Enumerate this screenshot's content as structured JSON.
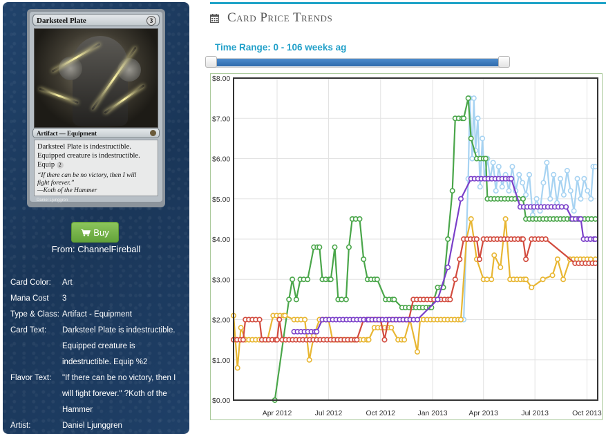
{
  "card": {
    "name": "Darksteel Plate",
    "cost": "3",
    "type_line": "Artifact — Equipment",
    "rules_text_lines": [
      "Darksteel Plate is indestructible.",
      "Equipped creature is indestructible.",
      "Equip"
    ],
    "equip_cost": "2",
    "flavor_lines": [
      "“If there can be no victory, then I will",
      "fight forever.”",
      "—Koth of the Hammer"
    ],
    "artist_credit": "Daniel Ljunggren"
  },
  "buy": {
    "label": "Buy",
    "from": "From: ChannelFireball",
    "icon": "shopping-cart-icon",
    "color": "#6aab40"
  },
  "details": [
    {
      "label": "Card Color:",
      "value": "Art"
    },
    {
      "label": "Mana Cost",
      "value": "3"
    },
    {
      "label": "Type & Class:",
      "value": "Artifact - Equipment"
    },
    {
      "label": "Card Text:",
      "value": "Darksteel Plate is indestructible. Equipped creature is indestructible. Equip %2"
    },
    {
      "label": "Flavor Text:",
      "value": "\"If there can be no victory, then I will fight forever.\" ?Koth of the Hammer"
    },
    {
      "label": "Artist:",
      "value": "Daniel Ljunggren"
    }
  ],
  "header": {
    "title": "Card Price Trends",
    "icon": "calendar-icon",
    "accent": "#1fa3c8"
  },
  "range": {
    "label": "Time Range: 0 - 106 weeks ag",
    "min": 0,
    "max": 106,
    "low": 0,
    "high": 106
  },
  "chart_data": {
    "type": "line",
    "x_ticks": [
      "Apr 2012",
      "Jul 2012",
      "Oct 2012",
      "Jan 2013",
      "Apr 2013",
      "Jul 2013",
      "Oct 2013"
    ],
    "x_tick_dates": [
      "2012-04-01",
      "2012-07-01",
      "2012-10-01",
      "2013-01-01",
      "2013-04-01",
      "2013-07-01",
      "2013-10-01"
    ],
    "xlim": [
      "2012-01-15",
      "2013-10-20"
    ],
    "y_ticks": [
      "$0.00",
      "$1.00",
      "$2.00",
      "$3.00",
      "$4.00",
      "$5.00",
      "$6.00",
      "$7.00",
      "$8.00"
    ],
    "ylim": [
      0,
      8
    ],
    "grid": true,
    "series": [
      {
        "color": "#a7d3f2",
        "points": [
          [
            "2013-02-25",
            2.0
          ],
          [
            "2013-03-05",
            5.5
          ],
          [
            "2013-03-08",
            7.5
          ],
          [
            "2013-03-12",
            6.0
          ],
          [
            "2013-03-15",
            7.5
          ],
          [
            "2013-03-18",
            6.2
          ],
          [
            "2013-03-22",
            7.0
          ],
          [
            "2013-03-26",
            5.3
          ],
          [
            "2013-03-30",
            6.5
          ],
          [
            "2013-04-03",
            5.5
          ],
          [
            "2013-04-08",
            6.0
          ],
          [
            "2013-04-13",
            5.5
          ],
          [
            "2013-04-18",
            5.9
          ],
          [
            "2013-04-23",
            5.2
          ],
          [
            "2013-04-28",
            5.8
          ],
          [
            "2013-05-04",
            5.3
          ],
          [
            "2013-05-10",
            5.6
          ],
          [
            "2013-05-16",
            5.2
          ],
          [
            "2013-05-22",
            5.8
          ],
          [
            "2013-05-28",
            5.2
          ],
          [
            "2013-06-03",
            5.6
          ],
          [
            "2013-06-09",
            5.4
          ],
          [
            "2013-06-15",
            5.1
          ],
          [
            "2013-06-21",
            5.6
          ],
          [
            "2013-06-27",
            4.6
          ],
          [
            "2013-07-04",
            5.0
          ],
          [
            "2013-07-10",
            4.7
          ],
          [
            "2013-07-16",
            5.4
          ],
          [
            "2013-07-22",
            5.9
          ],
          [
            "2013-07-28",
            5.0
          ],
          [
            "2013-08-03",
            5.6
          ],
          [
            "2013-08-09",
            4.9
          ],
          [
            "2013-08-15",
            5.5
          ],
          [
            "2013-08-21",
            5.1
          ],
          [
            "2013-08-27",
            5.7
          ],
          [
            "2013-09-02",
            5.2
          ],
          [
            "2013-09-08",
            4.7
          ],
          [
            "2013-09-14",
            5.5
          ],
          [
            "2013-09-20",
            5.0
          ],
          [
            "2013-09-26",
            5.5
          ],
          [
            "2013-10-02",
            5.2
          ],
          [
            "2013-10-08",
            5.0
          ],
          [
            "2013-10-12",
            5.8
          ],
          [
            "2013-10-16",
            5.8
          ]
        ]
      },
      {
        "color": "#4aa64a",
        "points": [
          [
            "2012-03-28",
            0.0
          ],
          [
            "2012-04-22",
            2.5
          ],
          [
            "2012-04-28",
            3.0
          ],
          [
            "2012-05-05",
            2.5
          ],
          [
            "2012-05-12",
            3.0
          ],
          [
            "2012-05-25",
            3.0
          ],
          [
            "2012-06-05",
            3.8
          ],
          [
            "2012-06-15",
            3.8
          ],
          [
            "2012-06-20",
            3.0
          ],
          [
            "2012-07-05",
            3.0
          ],
          [
            "2012-07-12",
            3.8
          ],
          [
            "2012-07-18",
            2.5
          ],
          [
            "2012-08-01",
            2.5
          ],
          [
            "2012-08-06",
            3.8
          ],
          [
            "2012-08-12",
            4.5
          ],
          [
            "2012-08-25",
            4.5
          ],
          [
            "2012-09-01",
            3.5
          ],
          [
            "2012-09-08",
            3.0
          ],
          [
            "2012-09-25",
            3.0
          ],
          [
            "2012-10-10",
            2.5
          ],
          [
            "2012-10-25",
            2.5
          ],
          [
            "2012-11-08",
            2.3
          ],
          [
            "2012-12-30",
            2.3
          ],
          [
            "2013-01-10",
            2.8
          ],
          [
            "2013-01-20",
            2.8
          ],
          [
            "2013-01-28",
            4.0
          ],
          [
            "2013-02-05",
            5.2
          ],
          [
            "2013-02-10",
            7.0
          ],
          [
            "2013-02-25",
            7.0
          ],
          [
            "2013-03-05",
            7.5
          ],
          [
            "2013-03-10",
            6.5
          ],
          [
            "2013-03-20",
            6.0
          ],
          [
            "2013-04-05",
            6.0
          ],
          [
            "2013-04-08",
            5.0
          ],
          [
            "2013-06-10",
            5.0
          ],
          [
            "2013-06-15",
            4.5
          ],
          [
            "2013-10-16",
            4.5
          ]
        ]
      },
      {
        "color": "#e8b632",
        "points": [
          [
            "2012-01-15",
            2.1
          ],
          [
            "2012-01-22",
            0.8
          ],
          [
            "2012-01-28",
            1.8
          ],
          [
            "2012-02-05",
            1.5
          ],
          [
            "2012-03-15",
            1.5
          ],
          [
            "2012-03-25",
            2.1
          ],
          [
            "2012-04-15",
            2.1
          ],
          [
            "2012-05-01",
            2.0
          ],
          [
            "2012-05-20",
            2.0
          ],
          [
            "2012-05-28",
            1.0
          ],
          [
            "2012-06-05",
            1.6
          ],
          [
            "2012-06-15",
            2.0
          ],
          [
            "2012-07-01",
            2.0
          ],
          [
            "2012-07-08",
            1.5
          ],
          [
            "2012-09-10",
            1.5
          ],
          [
            "2012-09-20",
            1.8
          ],
          [
            "2012-10-20",
            1.8
          ],
          [
            "2012-11-01",
            1.5
          ],
          [
            "2012-11-12",
            1.5
          ],
          [
            "2012-11-22",
            2.0
          ],
          [
            "2012-12-05",
            1.2
          ],
          [
            "2012-12-10",
            2.0
          ],
          [
            "2013-02-20",
            2.0
          ],
          [
            "2013-03-02",
            4.0
          ],
          [
            "2013-03-10",
            4.5
          ],
          [
            "2013-03-20",
            3.5
          ],
          [
            "2013-04-01",
            3.0
          ],
          [
            "2013-04-15",
            3.0
          ],
          [
            "2013-04-20",
            3.6
          ],
          [
            "2013-05-01",
            3.3
          ],
          [
            "2013-05-10",
            4.5
          ],
          [
            "2013-05-18",
            3.0
          ],
          [
            "2013-06-15",
            3.0
          ],
          [
            "2013-06-25",
            2.8
          ],
          [
            "2013-07-15",
            3.0
          ],
          [
            "2013-08-01",
            3.1
          ],
          [
            "2013-08-10",
            3.5
          ],
          [
            "2013-08-20",
            3.0
          ],
          [
            "2013-09-01",
            3.5
          ],
          [
            "2013-10-16",
            3.5
          ]
        ]
      },
      {
        "color": "#d24b3e",
        "points": [
          [
            "2012-01-15",
            1.5
          ],
          [
            "2012-02-01",
            1.5
          ],
          [
            "2012-02-05",
            2.0
          ],
          [
            "2012-03-01",
            2.0
          ],
          [
            "2012-03-05",
            1.5
          ],
          [
            "2012-04-01",
            1.5
          ],
          [
            "2012-04-05",
            2.0
          ],
          [
            "2012-04-10",
            1.5
          ],
          [
            "2012-08-20",
            1.5
          ],
          [
            "2012-09-01",
            2.0
          ],
          [
            "2012-09-20",
            2.0
          ],
          [
            "2012-10-01",
            2.0
          ],
          [
            "2012-10-08",
            1.5
          ],
          [
            "2012-10-15",
            2.0
          ],
          [
            "2012-11-20",
            2.0
          ],
          [
            "2012-11-28",
            2.5
          ],
          [
            "2013-02-01",
            2.5
          ],
          [
            "2013-02-10",
            3.0
          ],
          [
            "2013-02-18",
            3.5
          ],
          [
            "2013-02-25",
            4.0
          ],
          [
            "2013-03-20",
            4.0
          ],
          [
            "2013-03-25",
            3.5
          ],
          [
            "2013-04-01",
            4.0
          ],
          [
            "2013-06-10",
            4.0
          ],
          [
            "2013-06-15",
            3.5
          ],
          [
            "2013-06-25",
            4.0
          ],
          [
            "2013-07-20",
            4.0
          ],
          [
            "2013-09-10",
            3.4
          ],
          [
            "2013-10-16",
            3.4
          ]
        ]
      },
      {
        "color": "#7a3fc9",
        "points": [
          [
            "2012-05-01",
            1.7
          ],
          [
            "2012-06-10",
            1.7
          ],
          [
            "2012-06-20",
            2.0
          ],
          [
            "2012-09-10",
            2.0
          ],
          [
            "2012-12-05",
            2.0
          ],
          [
            "2013-01-10",
            2.5
          ],
          [
            "2013-01-28",
            3.3
          ],
          [
            "2013-02-20",
            5.0
          ],
          [
            "2013-03-10",
            5.5
          ],
          [
            "2013-05-20",
            5.5
          ],
          [
            "2013-06-05",
            4.8
          ],
          [
            "2013-08-25",
            4.8
          ],
          [
            "2013-09-05",
            4.5
          ],
          [
            "2013-09-20",
            4.5
          ],
          [
            "2013-09-25",
            4.0
          ],
          [
            "2013-10-16",
            4.0
          ]
        ]
      }
    ]
  }
}
